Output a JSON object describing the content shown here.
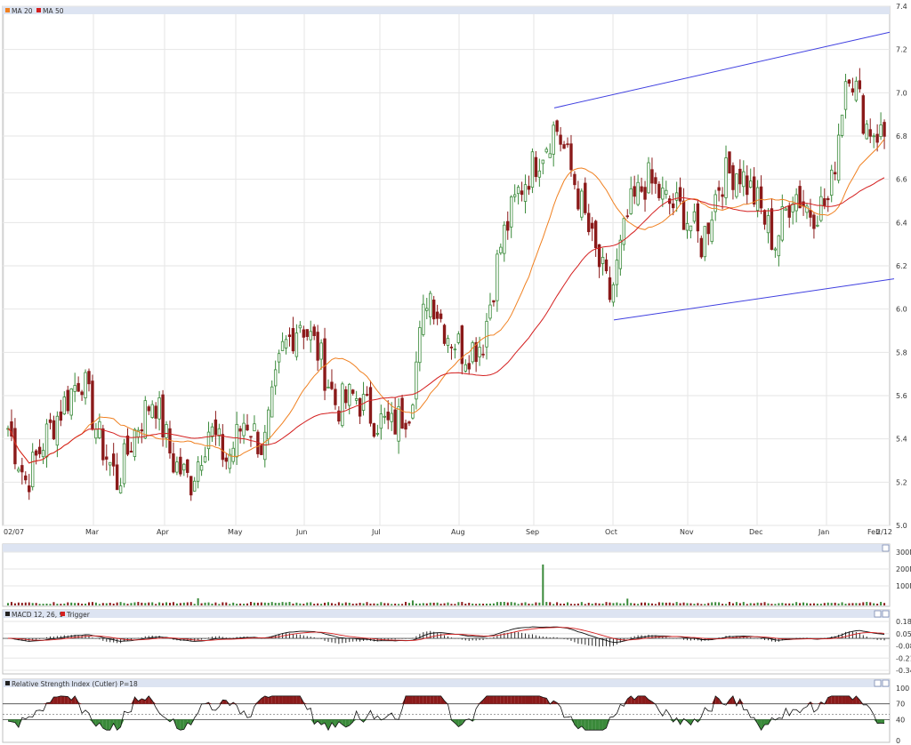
{
  "colors": {
    "up": "#3a8a3a",
    "down": "#8b1a1a",
    "ma20": "#f08020",
    "ma50": "#d42020",
    "channel": "#4040e0",
    "grid": "#e6e6e6",
    "header": "#dde4f2",
    "hist": "#2c2c2c",
    "rsiUp": "#8b1a1a",
    "rsiDown": "#3a8a3a"
  },
  "panels": {
    "price": {
      "legend": [
        {
          "label": "MA 20",
          "color": "#f08020"
        },
        {
          "label": "MA 50",
          "color": "#d42020"
        }
      ],
      "yticks": [
        "7.4",
        "7.2",
        "7.0",
        "6.8",
        "6.6",
        "6.4",
        "6.2",
        "6.0",
        "5.8",
        "5.6",
        "5.4",
        "5.2",
        "5.0"
      ]
    },
    "volume": {
      "yticks": [
        "300M",
        "200M",
        "100M"
      ]
    },
    "macd": {
      "title": "MACD 12, 26, 9",
      "trigger": "Trigger",
      "yticks": [
        "0.18",
        "0.05",
        "-0.08",
        "-0.21",
        "-0.34"
      ]
    },
    "rsi": {
      "title": "Relative Strength Index (Cutler) P=18",
      "yticks": [
        "100",
        "70",
        "40",
        "0"
      ]
    }
  },
  "xlabels": [
    "02/07",
    "Mar",
    "Apr",
    "May",
    "Jun",
    "Jul",
    "Aug",
    "Sep",
    "Oct",
    "Nov",
    "Dec",
    "Jan",
    "Feb",
    "2/12"
  ],
  "chart_data": {
    "type": "candlestick",
    "ylim": [
      5.0,
      7.4
    ],
    "x_range": [
      "02/07",
      "2/12"
    ],
    "price_anchors": [
      5.45,
      5.2,
      5.4,
      5.55,
      5.7,
      5.4,
      5.2,
      5.45,
      5.6,
      5.3,
      5.2,
      5.45,
      5.3,
      5.5,
      5.35,
      5.8,
      5.95,
      5.8,
      5.55,
      5.6,
      5.5,
      5.45,
      5.55,
      6.1,
      5.9,
      5.8,
      5.85,
      6.3,
      6.55,
      6.7,
      6.85,
      6.6,
      6.3,
      6.05,
      6.45,
      6.6,
      6.5,
      6.45,
      6.3,
      6.6,
      6.65,
      6.5,
      6.3,
      6.55,
      6.45,
      6.5,
      7.15,
      6.85,
      6.8
    ],
    "channel": {
      "upper": [
        [
          6.93,
          7.28
        ]
      ],
      "lower": [
        [
          5.95,
          6.14
        ]
      ]
    },
    "volume_spike": "Sep, ~230M",
    "macd_range": [
      -0.34,
      0.18
    ],
    "rsi_levels": [
      70,
      50,
      40
    ]
  }
}
